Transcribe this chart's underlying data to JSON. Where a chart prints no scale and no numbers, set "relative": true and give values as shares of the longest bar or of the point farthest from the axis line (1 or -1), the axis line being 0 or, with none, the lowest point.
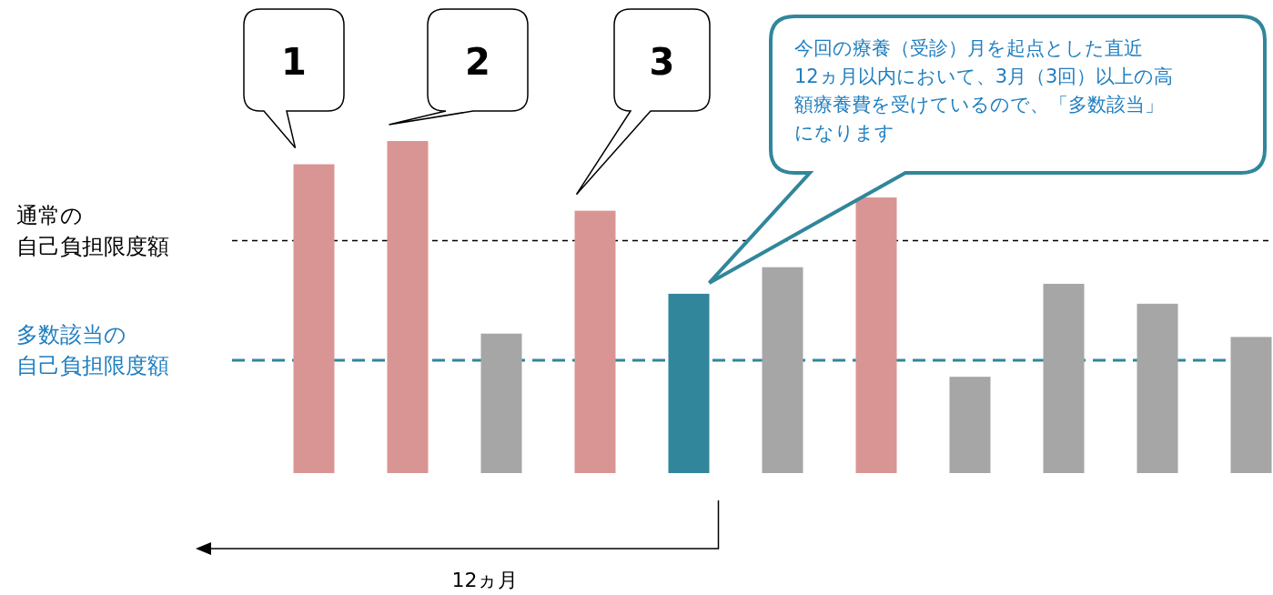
{
  "chart_data": {
    "type": "bar",
    "relative": true,
    "categories": [
      null,
      null,
      null,
      null,
      null,
      null,
      null,
      null,
      null,
      null,
      null
    ],
    "values": [
      0.93,
      1,
      0.42,
      0.79,
      0.54,
      0.62,
      0.83,
      0.29,
      0.57,
      0.51,
      0.41
    ],
    "colors": [
      "#d99594",
      "#d99594",
      "#a6a6a6",
      "#d99594",
      "#31869b",
      "#a6a6a6",
      "#d99594",
      "#a6a6a6",
      "#a6a6a6",
      "#a6a6a6",
      "#a6a6a6"
    ],
    "ref_lines": [
      {
        "axis": "y",
        "value": 0.7,
        "label": "通常の自己負担限度額",
        "color": "#000000",
        "line_style": "dashed"
      },
      {
        "axis": "y",
        "value": 0.34,
        "label": "多数該当の自己負担限度額",
        "color": "#31869b",
        "line_style": "dashed"
      }
    ],
    "annotations": [
      "1",
      "2",
      "3",
      "今回の療養（受診）月を起点とした直近12ヵ月以内において、3月（3回）以上の高額療養費を受けているので、「多数該当」になります",
      "12ヵ月"
    ]
  }
}
